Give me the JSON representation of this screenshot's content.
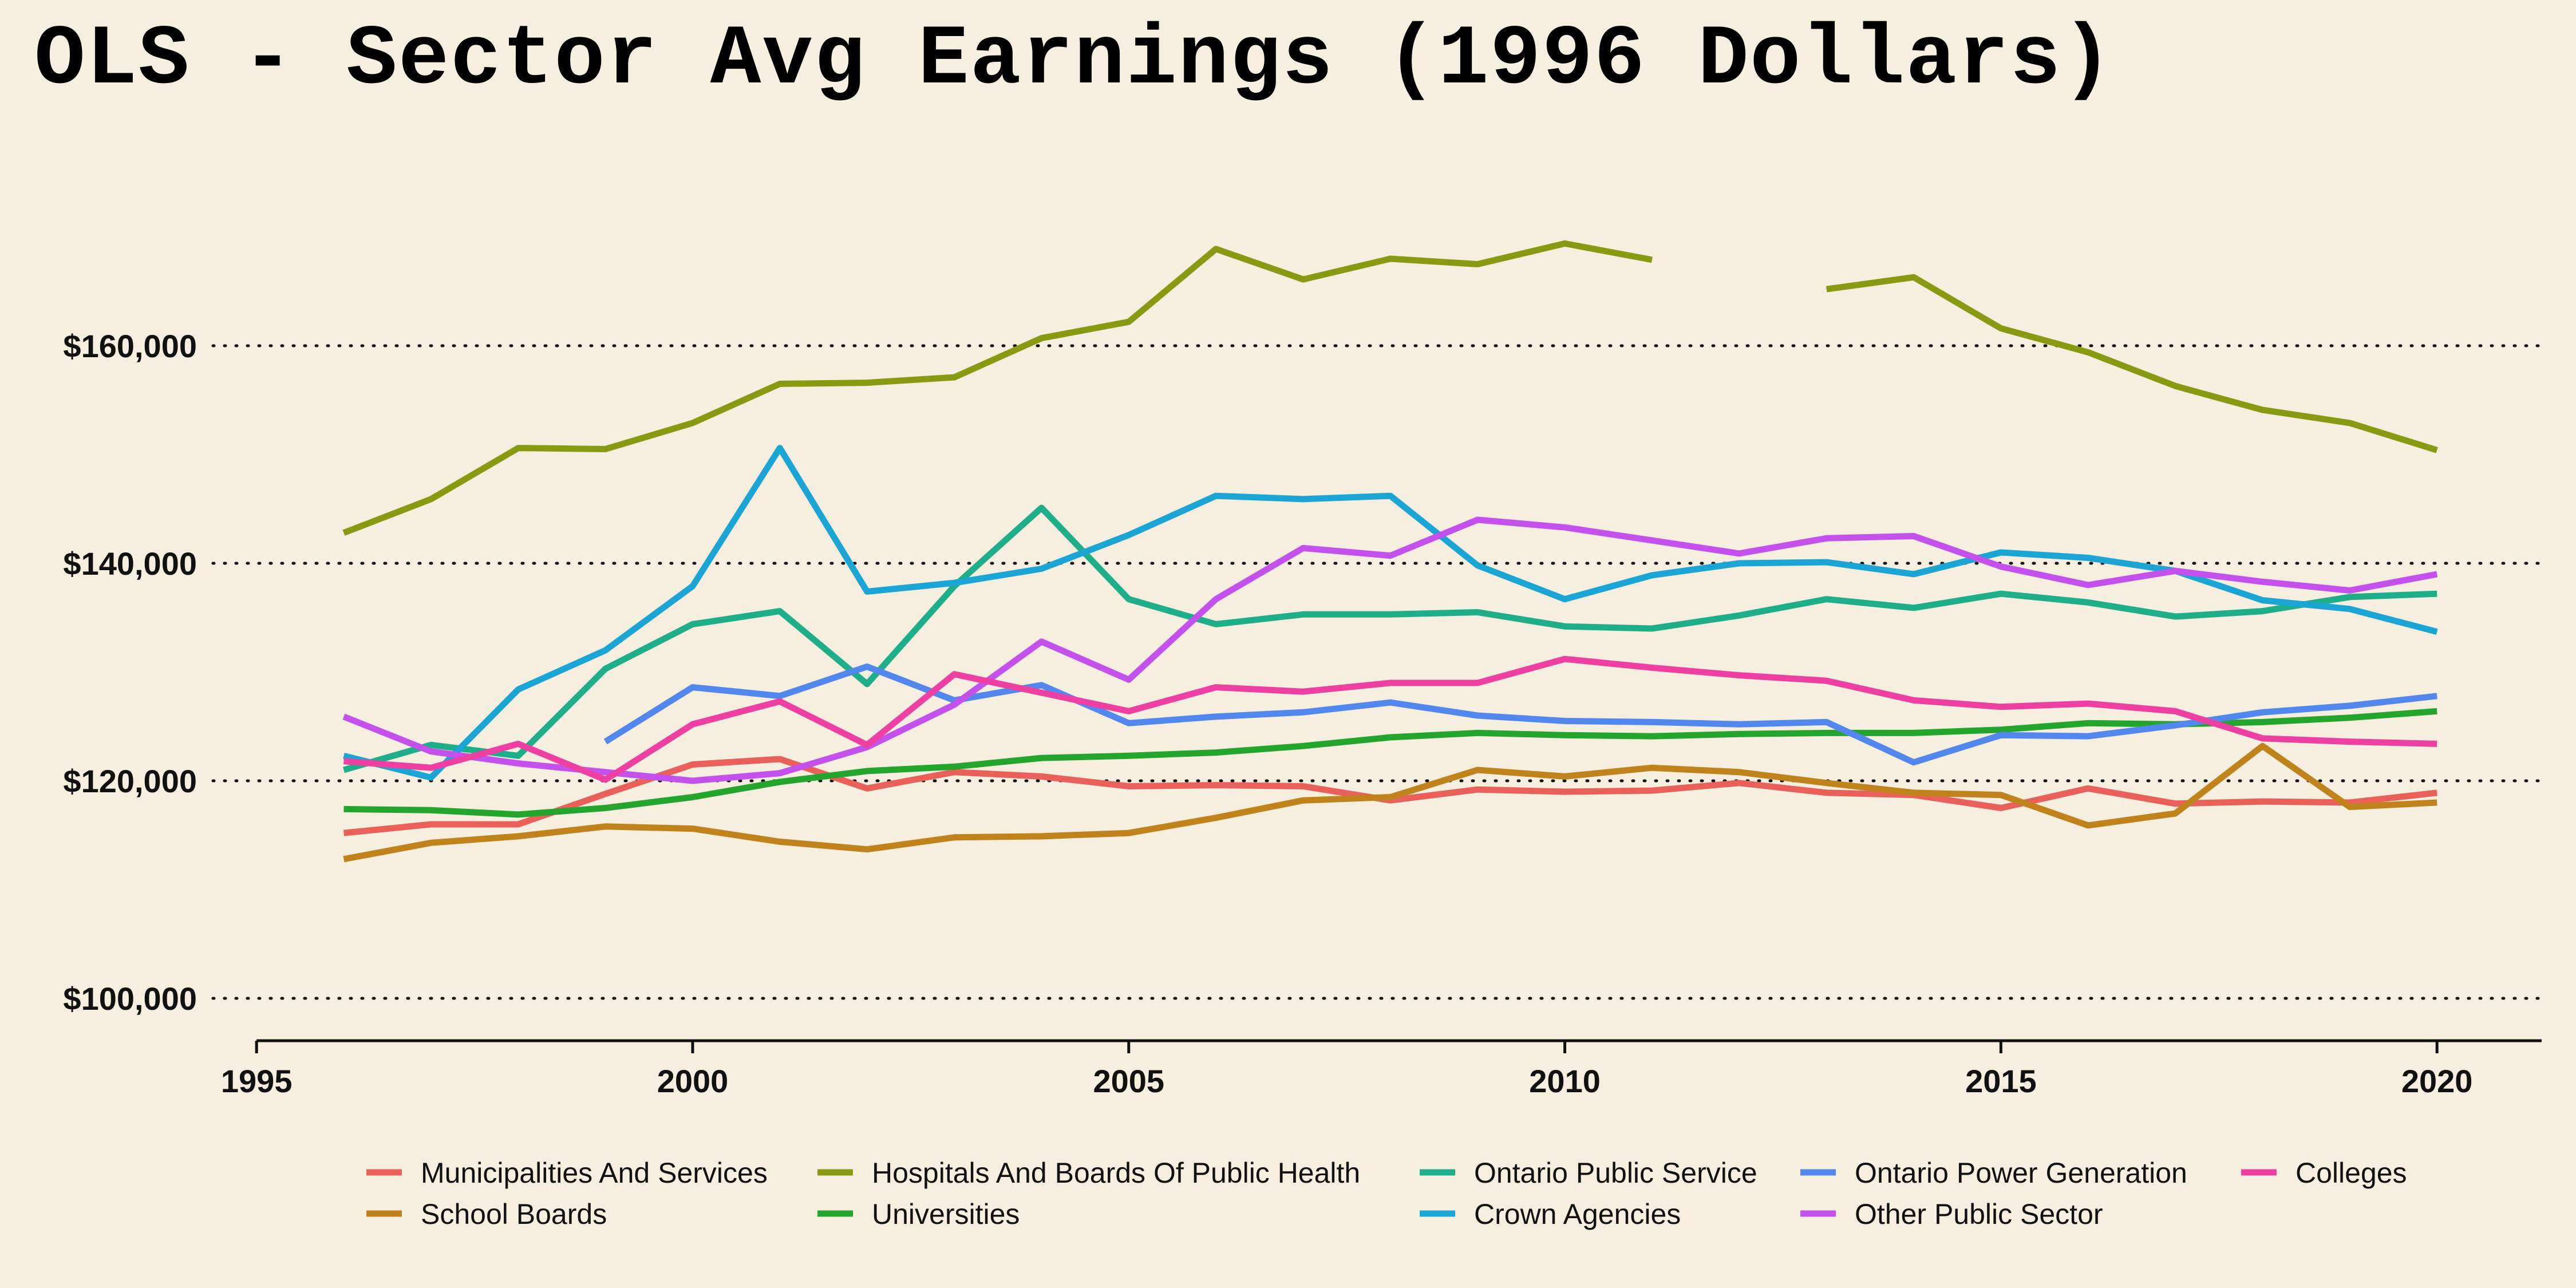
{
  "title": "OLS - Sector Avg Earnings (1996 Dollars)",
  "chart_data": {
    "type": "line",
    "title": "OLS - Sector Avg Earnings (1996 Dollars)",
    "xlabel": "",
    "ylabel": "",
    "xlim": [
      1994.5,
      2021.2
    ],
    "ylim": [
      96000,
      176000
    ],
    "x_ticks": [
      1995,
      2000,
      2005,
      2010,
      2015,
      2020
    ],
    "x_tick_labels": [
      "1995",
      "2000",
      "2005",
      "2010",
      "2015",
      "2020"
    ],
    "y_ticks": [
      100000,
      120000,
      140000,
      160000
    ],
    "y_tick_labels": [
      "$100,000",
      "$120,000",
      "$140,000",
      "$160,000"
    ],
    "grid": "horizontal dotted",
    "legend_position": "bottom",
    "x": [
      1996,
      1997,
      1998,
      1999,
      2000,
      2001,
      2002,
      2003,
      2004,
      2005,
      2006,
      2007,
      2008,
      2009,
      2010,
      2011,
      2012,
      2013,
      2014,
      2015,
      2016,
      2017,
      2018,
      2019,
      2020
    ],
    "series": [
      {
        "name": "Municipalities And Services",
        "color": "#e9605a",
        "values": [
          115200,
          116000,
          116000,
          118800,
          121500,
          122000,
          119300,
          120800,
          120400,
          119500,
          119600,
          119500,
          118200,
          119200,
          119000,
          119100,
          119800,
          118900,
          118700,
          117500,
          119300,
          117900,
          118100,
          118000,
          118900
        ]
      },
      {
        "name": "School Boards",
        "color": "#c0821a",
        "values": [
          112800,
          114300,
          114900,
          115800,
          115600,
          114400,
          113700,
          114800,
          114900,
          115200,
          116600,
          118200,
          118500,
          121000,
          120400,
          121200,
          120800,
          119800,
          118900,
          118700,
          115900,
          117000,
          123200,
          117600,
          118000
        ]
      },
      {
        "name": "Hospitals And Boards Of Public Health",
        "color": "#879a11",
        "values": [
          142800,
          145900,
          150600,
          150500,
          152900,
          156500,
          156600,
          157100,
          160700,
          162200,
          168900,
          166100,
          168000,
          167500,
          169400,
          167900,
          null,
          165200,
          166300,
          161600,
          159400,
          156300,
          154100,
          152900,
          150400
        ]
      },
      {
        "name": "Universities",
        "color": "#24a52e",
        "values": [
          117400,
          117300,
          116900,
          117500,
          118500,
          119900,
          120900,
          121300,
          122100,
          122300,
          122600,
          123200,
          124000,
          124400,
          124200,
          124100,
          124300,
          124400,
          124400,
          124700,
          125300,
          125200,
          125400,
          125800,
          126400
        ]
      },
      {
        "name": "Ontario Public Service",
        "color": "#1eae89",
        "values": [
          121000,
          123300,
          122300,
          130300,
          134400,
          135600,
          128900,
          137900,
          145100,
          136700,
          134400,
          135300,
          135300,
          135500,
          134200,
          134000,
          135200,
          136700,
          135900,
          137200,
          136400,
          135100,
          135600,
          136900,
          137200
        ]
      },
      {
        "name": "Crown Agencies",
        "color": "#1aa5d5",
        "values": [
          122300,
          120300,
          128400,
          132000,
          137900,
          150600,
          137400,
          138200,
          139500,
          142600,
          146200,
          145900,
          146200,
          139800,
          136700,
          138900,
          140000,
          140100,
          139000,
          141000,
          140500,
          139300,
          136600,
          135800,
          133700
        ]
      },
      {
        "name": "Ontario Power Generation",
        "color": "#5287ee",
        "values": [
          null,
          null,
          null,
          123600,
          128600,
          127800,
          130500,
          127400,
          128800,
          125300,
          125900,
          126300,
          127200,
          126000,
          125500,
          125400,
          125200,
          125400,
          121700,
          124200,
          124100,
          125100,
          126300,
          126900,
          127800
        ]
      },
      {
        "name": "Other Public Sector",
        "color": "#c451ec",
        "values": [
          125900,
          122700,
          121600,
          120800,
          120000,
          120700,
          123100,
          127000,
          132800,
          129300,
          136700,
          141400,
          140700,
          144000,
          143300,
          142100,
          140900,
          142300,
          142500,
          139700,
          138000,
          139300,
          138300,
          137500,
          139000
        ]
      },
      {
        "name": "Colleges",
        "color": "#ee3fa3",
        "values": [
          121800,
          121200,
          123400,
          120100,
          125200,
          127300,
          123300,
          129800,
          128100,
          126400,
          128600,
          128200,
          129000,
          129000,
          131200,
          130400,
          129700,
          129200,
          127400,
          126800,
          127100,
          126400,
          123900,
          123600,
          123400
        ]
      }
    ]
  }
}
